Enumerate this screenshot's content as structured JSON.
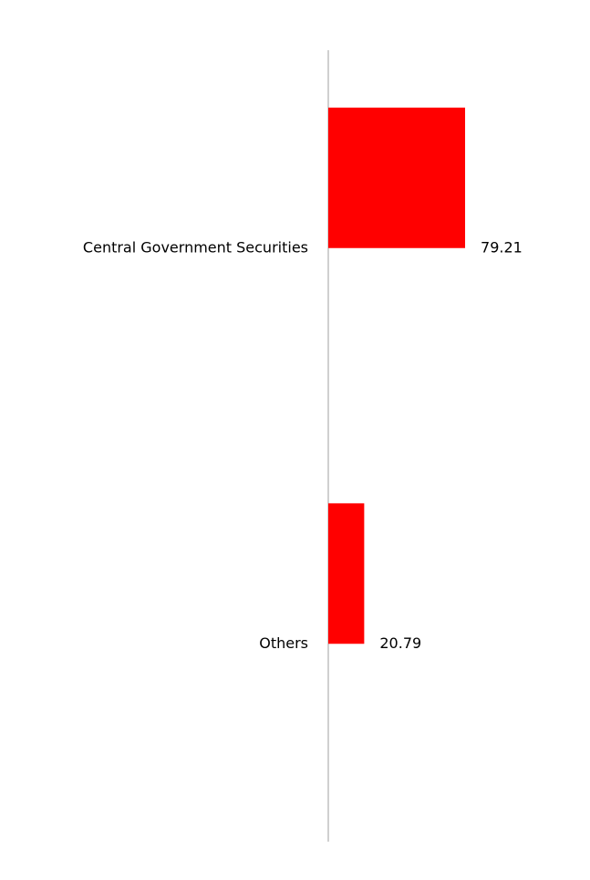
{
  "chart_data": {
    "type": "bar",
    "categories": [
      "Central Government Securities",
      "Others"
    ],
    "values": [
      79.21,
      20.79
    ],
    "color": "#ff0000"
  }
}
